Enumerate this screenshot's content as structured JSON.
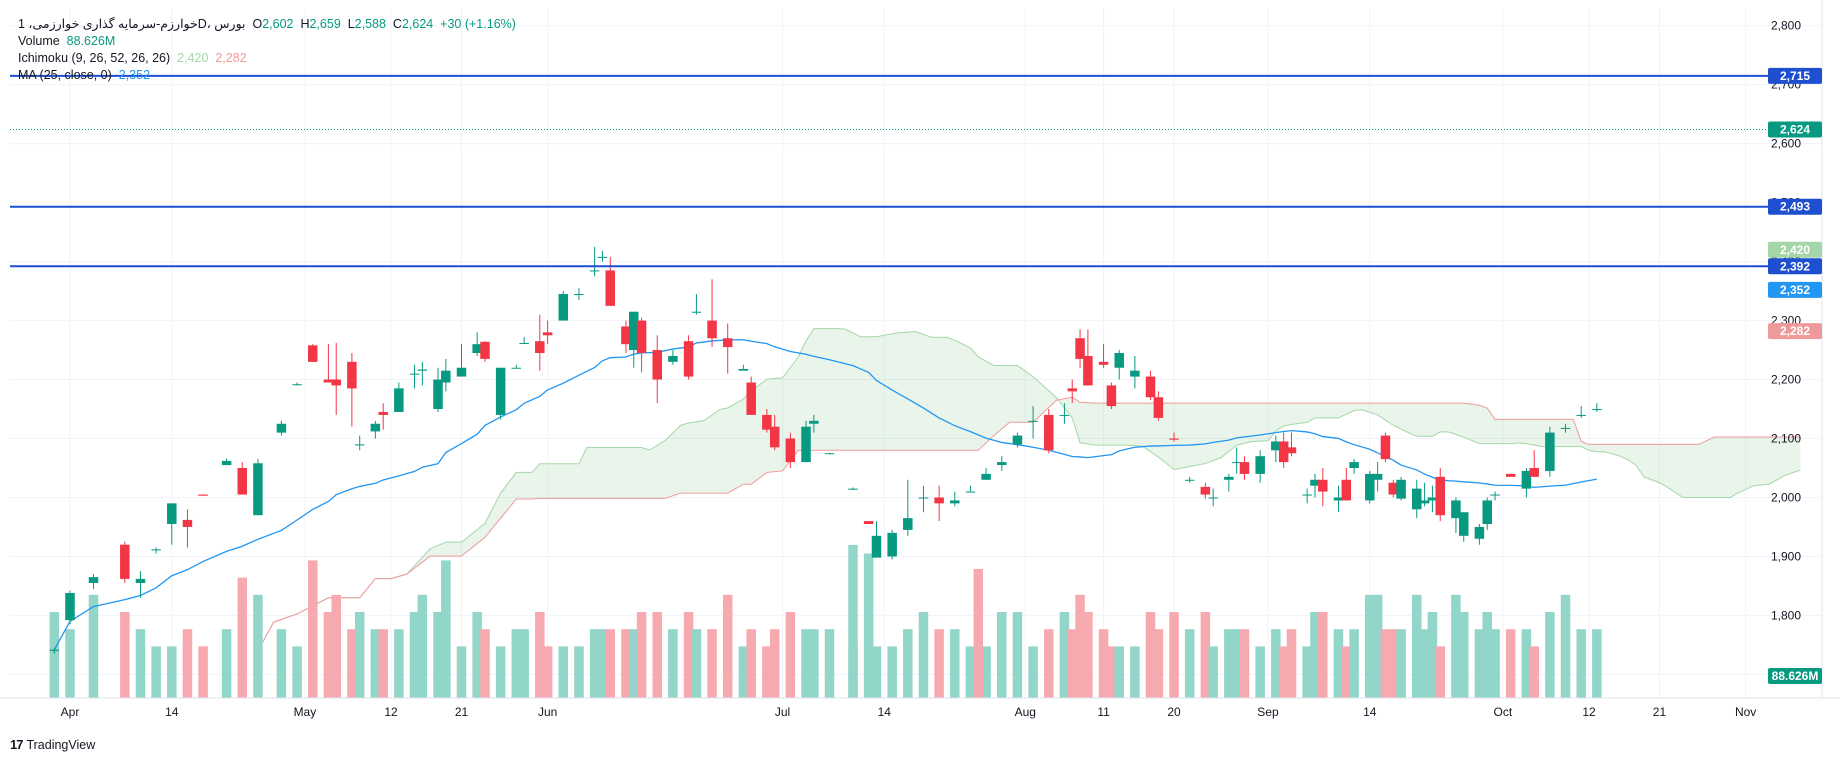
{
  "legend": {
    "symbol": "خوارزم‌-سرمایه گذاری خوارزمی، 1D، بورس",
    "o_label": "O",
    "o": "2,602",
    "h_label": "H",
    "h": "2,659",
    "l_label": "L",
    "l": "2,588",
    "c_label": "C",
    "c": "2,624",
    "change": "+30 (+1.16%)",
    "volume_label": "Volume",
    "volume": "88.626M",
    "ichimoku_label": "Ichimoku (9, 26, 52, 26, 26)",
    "ichimoku_a": "2,420",
    "ichimoku_b": "2,282",
    "ma_label": "MA (25, close, 0)",
    "ma": "2,352"
  },
  "brand": {
    "name": "TradingView",
    "logo": "17"
  },
  "colors": {
    "up": "#089981",
    "down": "#f23645",
    "vol_up": "#92d5c9",
    "vol_down": "#f7a9b0",
    "ma": "#2196f3",
    "hline": "#1e4fd0",
    "cloud_bull_fill": "rgba(76,175,80,0.12)",
    "cloud_bear_fill": "rgba(242,54,69,0.12)",
    "span_a": "#a5d6a7",
    "span_b": "#ef9a9a"
  },
  "chart_data": {
    "type": "candlestick",
    "ylim": [
      1660,
      2830
    ],
    "yticks": [
      1700,
      1800,
      1900,
      2000,
      2100,
      2200,
      2300,
      2400,
      2500,
      2600,
      2700,
      2800
    ],
    "ytick_labels": [
      "1,700",
      "1,800",
      "1,900",
      "2,000",
      "2,100",
      "2,200",
      "2,300",
      "2,400",
      "2,500",
      "2,600",
      "2,700",
      "2,800"
    ],
    "xticks": [
      {
        "d": 0,
        "label": "Apr"
      },
      {
        "d": 13,
        "label": "14"
      },
      {
        "d": 30,
        "label": "May"
      },
      {
        "d": 41,
        "label": "12"
      },
      {
        "d": 50,
        "label": "21"
      },
      {
        "d": 61,
        "label": "Jun"
      },
      {
        "d": 91,
        "label": "Jul"
      },
      {
        "d": 104,
        "label": "14"
      },
      {
        "d": 122,
        "label": "Aug"
      },
      {
        "d": 132,
        "label": "11"
      },
      {
        "d": 141,
        "label": "20"
      },
      {
        "d": 153,
        "label": "Sep"
      },
      {
        "d": 166,
        "label": "14"
      },
      {
        "d": 183,
        "label": "Oct"
      },
      {
        "d": 194,
        "label": "12"
      },
      {
        "d": 203,
        "label": "21"
      },
      {
        "d": 214,
        "label": "Nov"
      }
    ],
    "horizontal_lines": [
      2715,
      2493,
      2392
    ],
    "price_labels": [
      {
        "value": 2715,
        "label": "2,715",
        "kind": "hline"
      },
      {
        "value": 2624,
        "label": "2,624",
        "kind": "last"
      },
      {
        "value": 2493,
        "label": "2,493",
        "kind": "hline"
      },
      {
        "value": 2420,
        "label": "2,420",
        "kind": "span_a"
      },
      {
        "value": 2392,
        "label": "2,392",
        "kind": "hline"
      },
      {
        "value": 2352,
        "label": "2,352",
        "kind": "ma"
      },
      {
        "value": 2282,
        "label": "2,282",
        "kind": "span_b"
      }
    ],
    "volume_label": "88.626M",
    "candles": [
      [
        -2,
        1740,
        1745,
        1735,
        1742,
        5
      ],
      [
        0,
        1792,
        1842,
        1785,
        1838,
        4
      ],
      [
        3,
        1855,
        1870,
        1845,
        1865,
        6
      ],
      [
        7,
        1920,
        1925,
        1855,
        1862,
        5
      ],
      [
        9,
        1855,
        1875,
        1830,
        1862,
        4
      ],
      [
        11,
        1912,
        1915,
        1905,
        1912,
        3
      ],
      [
        13,
        1955,
        1990,
        1920,
        1990,
        3
      ],
      [
        15,
        1962,
        1980,
        1915,
        1950,
        4
      ],
      [
        17,
        2005,
        2005,
        2003,
        2003,
        3
      ],
      [
        20,
        2055,
        2066,
        2055,
        2062,
        4
      ],
      [
        22,
        2050,
        2060,
        2005,
        2005,
        7
      ],
      [
        24,
        1970,
        2065,
        1970,
        2058,
        6
      ],
      [
        27,
        2110,
        2130,
        2105,
        2125,
        4
      ],
      [
        29,
        2192,
        2195,
        2190,
        2192,
        3
      ],
      [
        31,
        2258,
        2260,
        2230,
        2230,
        8
      ],
      [
        33,
        2200,
        2260,
        2195,
        2195,
        5
      ],
      [
        34,
        2200,
        2262,
        2140,
        2190,
        6
      ],
      [
        36,
        2230,
        2245,
        2120,
        2185,
        4
      ],
      [
        37,
        2090,
        2105,
        2080,
        2090,
        5
      ],
      [
        39,
        2112,
        2130,
        2100,
        2125,
        4
      ],
      [
        40,
        2145,
        2160,
        2115,
        2140,
        4
      ],
      [
        42,
        2145,
        2195,
        2145,
        2185,
        4
      ],
      [
        44,
        2210,
        2225,
        2185,
        2210,
        5
      ],
      [
        45,
        2215,
        2230,
        2190,
        2217,
        6
      ],
      [
        47,
        2150,
        2220,
        2145,
        2200,
        5
      ],
      [
        48,
        2195,
        2235,
        2180,
        2215,
        8
      ],
      [
        50,
        2205,
        2260,
        2205,
        2220,
        3
      ],
      [
        52,
        2245,
        2280,
        2240,
        2260,
        5
      ],
      [
        53,
        2264,
        2265,
        2230,
        2235,
        4
      ],
      [
        55,
        2140,
        2220,
        2132,
        2220,
        3
      ],
      [
        57,
        2220,
        2225,
        2220,
        2220,
        4
      ],
      [
        58,
        2262,
        2272,
        2260,
        2262,
        4
      ],
      [
        60,
        2265,
        2310,
        2215,
        2245,
        5
      ],
      [
        61,
        2280,
        2300,
        2260,
        2275,
        3
      ],
      [
        63,
        2300,
        2350,
        2300,
        2345,
        3
      ],
      [
        65,
        2345,
        2355,
        2335,
        2345,
        3
      ],
      [
        67,
        2385,
        2425,
        2375,
        2385,
        4
      ],
      [
        68,
        2408,
        2418,
        2400,
        2408,
        4
      ],
      [
        69,
        2385,
        2408,
        2325,
        2325,
        4
      ],
      [
        71,
        2290,
        2300,
        2245,
        2260,
        4
      ],
      [
        72,
        2250,
        2315,
        2220,
        2315,
        4
      ],
      [
        73,
        2300,
        2305,
        2212,
        2245,
        5
      ],
      [
        75,
        2250,
        2275,
        2160,
        2200,
        5
      ],
      [
        77,
        2230,
        2250,
        2225,
        2240,
        4
      ],
      [
        79,
        2265,
        2275,
        2200,
        2205,
        5
      ],
      [
        80,
        2315,
        2345,
        2310,
        2315,
        4
      ],
      [
        82,
        2300,
        2370,
        2255,
        2270,
        4
      ],
      [
        84,
        2270,
        2295,
        2210,
        2255,
        6
      ],
      [
        86,
        2215,
        2225,
        2218,
        2218,
        3
      ],
      [
        87,
        2195,
        2205,
        2140,
        2140,
        4
      ],
      [
        89,
        2140,
        2150,
        2110,
        2115,
        3
      ],
      [
        90,
        2120,
        2140,
        2080,
        2085,
        4
      ],
      [
        92,
        2100,
        2110,
        2050,
        2060,
        5
      ],
      [
        94,
        2060,
        2130,
        2060,
        2120,
        4
      ],
      [
        95,
        2125,
        2140,
        2110,
        2130,
        4
      ],
      [
        97,
        2075,
        2076,
        2074,
        2075,
        4
      ],
      [
        100,
        2015,
        2017,
        2013,
        2015,
        3
      ],
      [
        102,
        1960,
        1960,
        1955,
        1955,
        3
      ],
      [
        103,
        1898,
        1960,
        1898,
        1935,
        3
      ],
      [
        105,
        1900,
        1945,
        1895,
        1940,
        3
      ],
      [
        107,
        1945,
        2030,
        1935,
        1965,
        4
      ],
      [
        109,
        2000,
        2020,
        1975,
        2000,
        5
      ],
      [
        111,
        2000,
        2020,
        1960,
        1990,
        4
      ],
      [
        113,
        1990,
        2010,
        1985,
        1995,
        4
      ],
      [
        115,
        2010,
        2020,
        2010,
        2010,
        3
      ],
      [
        117,
        2030,
        2050,
        2030,
        2040,
        3
      ],
      [
        119,
        2055,
        2070,
        2045,
        2060,
        5
      ],
      [
        121,
        2090,
        2110,
        2085,
        2105,
        5
      ],
      [
        123,
        2130,
        2155,
        2100,
        2130,
        3
      ],
      [
        125,
        2140,
        2150,
        2075,
        2080,
        4
      ],
      [
        127,
        2140,
        2160,
        2125,
        2140,
        5
      ],
      [
        128,
        2185,
        2200,
        2160,
        2180,
        4
      ],
      [
        129,
        2270,
        2285,
        2220,
        2235,
        6
      ],
      [
        130,
        2240,
        2285,
        2190,
        2190,
        5
      ],
      [
        132,
        2230,
        2260,
        2220,
        2225,
        4
      ],
      [
        133,
        2190,
        2195,
        2150,
        2155,
        3
      ],
      [
        134,
        2220,
        2250,
        2200,
        2245,
        3
      ],
      [
        136,
        2205,
        2240,
        2185,
        2215,
        3
      ],
      [
        138,
        2205,
        2215,
        2165,
        2170,
        5
      ],
      [
        139,
        2170,
        2180,
        2130,
        2135,
        4
      ],
      [
        141,
        2100,
        2110,
        2095,
        2098,
        5
      ],
      [
        143,
        2030,
        2035,
        2025,
        2030,
        4
      ],
      [
        145,
        2018,
        2025,
        1998,
        2005,
        5
      ],
      [
        146,
        2000,
        2015,
        1985,
        2000,
        3
      ],
      [
        148,
        2030,
        2040,
        2010,
        2035,
        4
      ],
      [
        149,
        2060,
        2085,
        2040,
        2060,
        4
      ],
      [
        150,
        2060,
        2070,
        2030,
        2040,
        4
      ],
      [
        152,
        2040,
        2080,
        2025,
        2070,
        3
      ],
      [
        154,
        2080,
        2105,
        2060,
        2095,
        4
      ],
      [
        155,
        2095,
        2110,
        2050,
        2060,
        3
      ],
      [
        156,
        2085,
        2110,
        2070,
        2075,
        4
      ],
      [
        158,
        2005,
        2015,
        1990,
        2005,
        3
      ],
      [
        159,
        2020,
        2040,
        2000,
        2030,
        5
      ],
      [
        160,
        2030,
        2050,
        1985,
        2010,
        5
      ],
      [
        162,
        1995,
        2020,
        1975,
        2000,
        4
      ],
      [
        163,
        2030,
        2050,
        1995,
        1995,
        3
      ],
      [
        164,
        2050,
        2065,
        2040,
        2060,
        4
      ],
      [
        166,
        1995,
        2045,
        1990,
        2040,
        6
      ],
      [
        167,
        2030,
        2060,
        2010,
        2040,
        6
      ],
      [
        168,
        2105,
        2110,
        2060,
        2065,
        4
      ],
      [
        169,
        2025,
        2030,
        2000,
        2005,
        4
      ],
      [
        170,
        1998,
        2035,
        1995,
        2030,
        4
      ],
      [
        172,
        1980,
        2030,
        1965,
        2015,
        6
      ],
      [
        173,
        1990,
        2025,
        1985,
        1995,
        4
      ],
      [
        174,
        1995,
        2020,
        1975,
        2000,
        5
      ],
      [
        175,
        2035,
        2050,
        1960,
        1970,
        3
      ],
      [
        177,
        1965,
        2000,
        1940,
        1995,
        6
      ],
      [
        178,
        1935,
        1975,
        1925,
        1975,
        5
      ],
      [
        180,
        1930,
        1955,
        1920,
        1950,
        4
      ],
      [
        181,
        1955,
        2000,
        1945,
        1995,
        5
      ],
      [
        182,
        2005,
        2010,
        1995,
        2005,
        4
      ],
      [
        184,
        2040,
        2040,
        2035,
        2035,
        4
      ],
      [
        186,
        2015,
        2050,
        2000,
        2045,
        4
      ],
      [
        187,
        2050,
        2080,
        2035,
        2035,
        3
      ],
      [
        189,
        2045,
        2120,
        2035,
        2110,
        5
      ],
      [
        191,
        2118,
        2125,
        2110,
        2118,
        6
      ],
      [
        193,
        2140,
        2155,
        2135,
        2140,
        4
      ],
      [
        195,
        2150,
        2160,
        2145,
        2150,
        4
      ]
    ]
  }
}
